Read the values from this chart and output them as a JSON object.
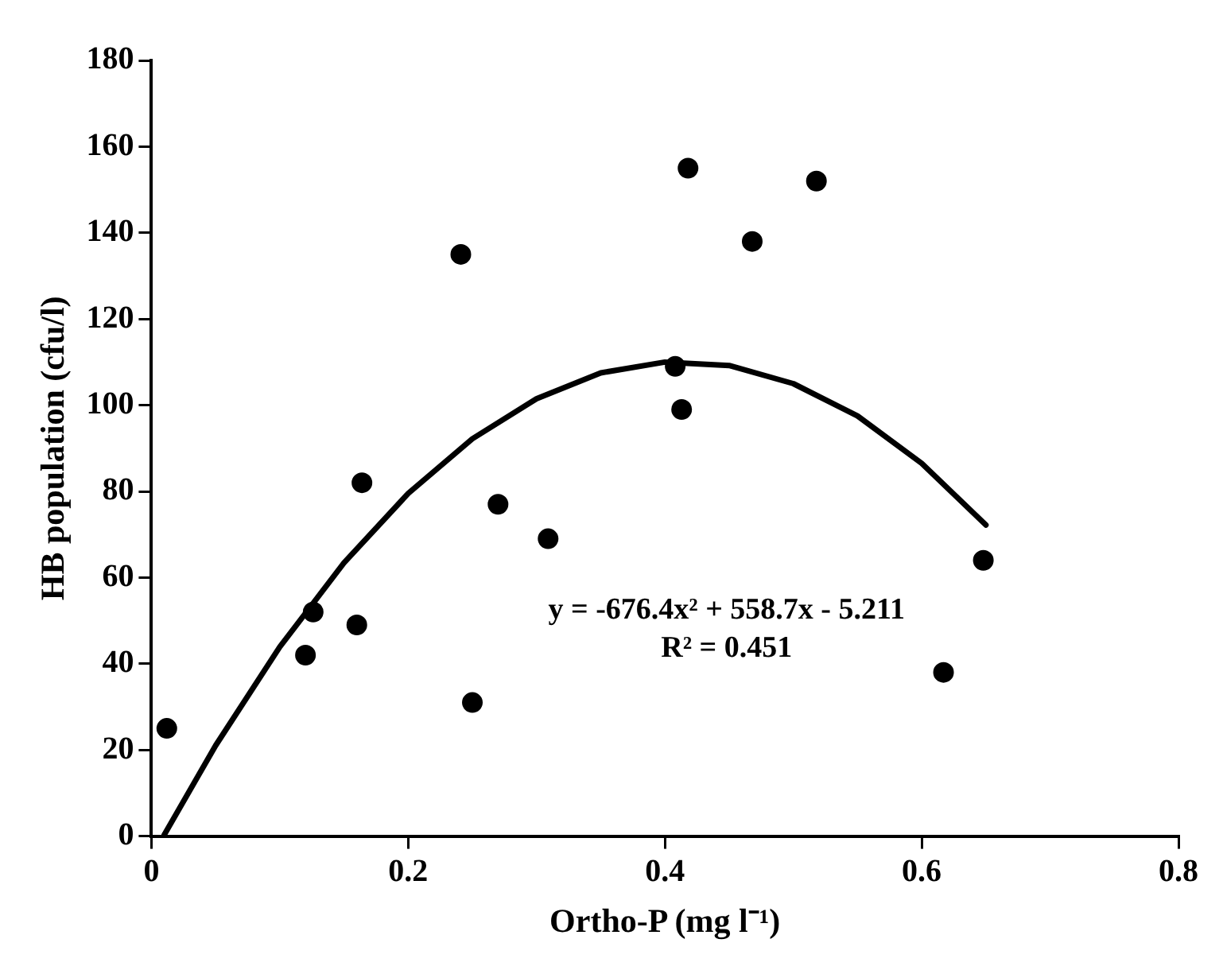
{
  "chart_data": {
    "type": "scatter",
    "xlabel": "Ortho-P (mg l⁻¹)",
    "ylabel": "HB population (cfu/l)",
    "xlim": [
      0,
      0.8
    ],
    "xticks": [
      0,
      0.2,
      0.4,
      0.6,
      0.8
    ],
    "ylim": [
      0,
      180
    ],
    "yticks": [
      0,
      20,
      40,
      60,
      80,
      100,
      120,
      140,
      160,
      180
    ],
    "grid": false,
    "legend": false,
    "annotations": [
      "y = -676.4x² + 558.7x - 5.211",
      "R² = 0.451"
    ],
    "series": [
      {
        "marker": "circle",
        "color": "#000000",
        "x": [
          0.012,
          0.12,
          0.126,
          0.16,
          0.164,
          0.241,
          0.25,
          0.27,
          0.309,
          0.408,
          0.413,
          0.418,
          0.468,
          0.518,
          0.617,
          0.648
        ],
        "values": [
          25,
          42,
          52,
          49,
          82,
          135,
          31,
          77,
          69,
          109,
          99,
          155,
          138,
          152,
          38,
          64
        ]
      },
      {
        "type": "line",
        "marker": "none",
        "line_style": "solid",
        "color": "#000000",
        "x": [
          0.01,
          0.05,
          0.1,
          0.15,
          0.2,
          0.25,
          0.3,
          0.35,
          0.4,
          0.45,
          0.5,
          0.55,
          0.6,
          0.65
        ],
        "values": [
          0.3,
          21.0,
          43.9,
          63.4,
          79.5,
          92.2,
          101.5,
          107.5,
          110.0,
          109.2,
          105.0,
          97.5,
          86.5,
          72.2
        ]
      }
    ]
  }
}
